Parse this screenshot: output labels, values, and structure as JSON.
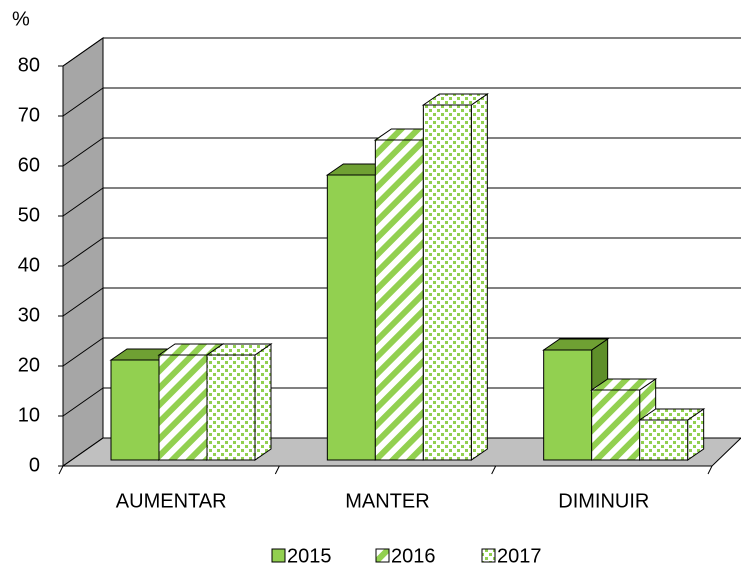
{
  "chart_data": {
    "type": "bar3d",
    "y_label": "%",
    "categories": [
      "AUMENTAR",
      "MANTER",
      "DIMINUIR"
    ],
    "series": [
      {
        "name": "2015",
        "color": "#92d050",
        "pattern": "solid",
        "values": [
          20,
          57,
          22
        ]
      },
      {
        "name": "2016",
        "color": "#92d050",
        "pattern": "stripes",
        "values": [
          21,
          64,
          14
        ]
      },
      {
        "name": "2017",
        "color": "#92d050",
        "pattern": "dots",
        "values": [
          21,
          71,
          8
        ]
      }
    ],
    "ylim": [
      0,
      80
    ],
    "yticks": [
      0,
      10,
      20,
      30,
      40,
      50,
      60,
      70,
      80
    ],
    "grid": true,
    "legend": "bottom"
  }
}
